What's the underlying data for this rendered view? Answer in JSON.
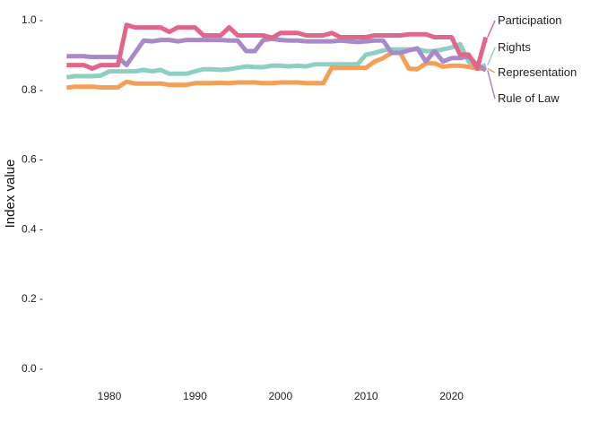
{
  "chart_data": {
    "type": "line",
    "title": "",
    "xlabel": "",
    "ylabel": "Index value",
    "xlim": [
      1975,
      2024
    ],
    "ylim": [
      0,
      1.0
    ],
    "x_ticks": [
      1980,
      1990,
      2000,
      2010,
      2020
    ],
    "y_ticks": [
      0.0,
      0.2,
      0.4,
      0.6,
      0.8,
      1.0
    ],
    "y_tick_labels": [
      "0.0 -",
      "0.2 -",
      "0.4 -",
      "0.6 -",
      "0.8 -",
      "1.0 -"
    ],
    "grid": false,
    "legend": "direct-labels-right",
    "x": [
      1975,
      1976,
      1977,
      1978,
      1979,
      1980,
      1981,
      1982,
      1983,
      1984,
      1985,
      1986,
      1987,
      1988,
      1989,
      1990,
      1991,
      1992,
      1993,
      1994,
      1995,
      1996,
      1997,
      1998,
      1999,
      2000,
      2001,
      2002,
      2003,
      2004,
      2005,
      2006,
      2007,
      2008,
      2009,
      2010,
      2011,
      2012,
      2013,
      2014,
      2015,
      2016,
      2017,
      2018,
      2019,
      2020,
      2021,
      2022,
      2023,
      2024
    ],
    "series": [
      {
        "name": "Participation",
        "color": "#e0668a",
        "values": [
          0.87,
          0.87,
          0.87,
          0.86,
          0.87,
          0.87,
          0.87,
          0.985,
          0.978,
          0.978,
          0.978,
          0.978,
          0.965,
          0.978,
          0.978,
          0.978,
          0.955,
          0.955,
          0.955,
          0.978,
          0.955,
          0.955,
          0.955,
          0.955,
          0.948,
          0.962,
          0.962,
          0.962,
          0.955,
          0.955,
          0.955,
          0.962,
          0.95,
          0.95,
          0.95,
          0.95,
          0.955,
          0.955,
          0.955,
          0.955,
          0.958,
          0.958,
          0.958,
          0.95,
          0.95,
          0.95,
          0.9,
          0.9,
          0.86,
          0.95
        ]
      },
      {
        "name": "Rights",
        "color": "#8ecfc4",
        "values": [
          0.835,
          0.838,
          0.838,
          0.838,
          0.84,
          0.852,
          0.852,
          0.852,
          0.852,
          0.856,
          0.852,
          0.856,
          0.845,
          0.845,
          0.845,
          0.852,
          0.858,
          0.858,
          0.856,
          0.858,
          0.862,
          0.866,
          0.864,
          0.864,
          0.868,
          0.868,
          0.866,
          0.868,
          0.866,
          0.872,
          0.872,
          0.872,
          0.872,
          0.872,
          0.872,
          0.9,
          0.905,
          0.912,
          0.915,
          0.915,
          0.915,
          0.915,
          0.91,
          0.91,
          0.915,
          0.92,
          0.93,
          0.88,
          0.86,
          0.87
        ]
      },
      {
        "name": "Representation",
        "color": "#f2a058",
        "values": [
          0.805,
          0.808,
          0.808,
          0.808,
          0.806,
          0.806,
          0.806,
          0.822,
          0.817,
          0.817,
          0.817,
          0.817,
          0.813,
          0.813,
          0.813,
          0.818,
          0.818,
          0.818,
          0.819,
          0.818,
          0.82,
          0.82,
          0.82,
          0.818,
          0.818,
          0.82,
          0.82,
          0.82,
          0.818,
          0.818,
          0.818,
          0.862,
          0.862,
          0.862,
          0.862,
          0.862,
          0.88,
          0.89,
          0.905,
          0.905,
          0.86,
          0.858,
          0.875,
          0.875,
          0.865,
          0.868,
          0.868,
          0.865,
          0.86,
          0.86
        ]
      },
      {
        "name": "Rule of Law",
        "color": "#a88ac8",
        "values": [
          0.895,
          0.895,
          0.895,
          0.893,
          0.893,
          0.893,
          0.893,
          0.87,
          0.905,
          0.94,
          0.938,
          0.942,
          0.942,
          0.938,
          0.942,
          0.942,
          0.942,
          0.942,
          0.942,
          0.94,
          0.94,
          0.91,
          0.91,
          0.942,
          0.945,
          0.942,
          0.94,
          0.94,
          0.938,
          0.938,
          0.938,
          0.938,
          0.94,
          0.938,
          0.936,
          0.938,
          0.94,
          0.94,
          0.905,
          0.905,
          0.912,
          0.918,
          0.88,
          0.91,
          0.88,
          0.89,
          0.89,
          0.895,
          0.87,
          0.855
        ]
      }
    ]
  }
}
